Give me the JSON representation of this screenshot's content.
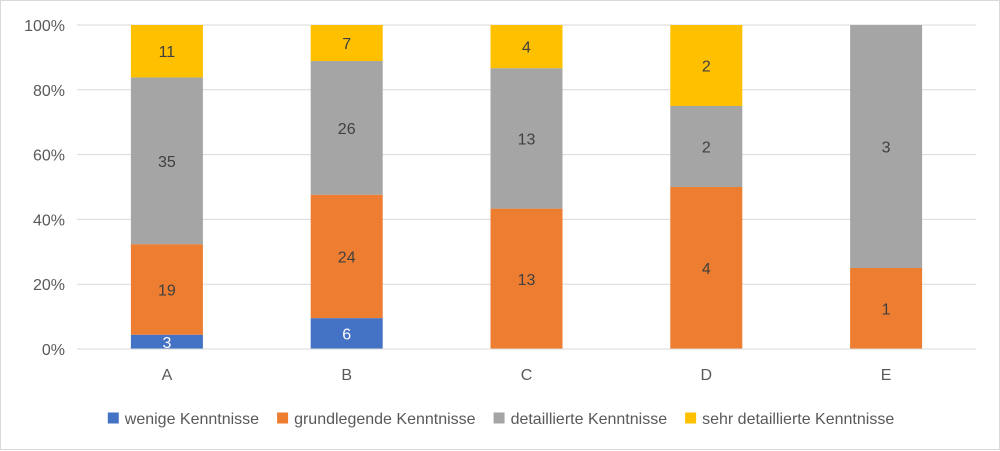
{
  "chart_data": {
    "type": "bar",
    "stacked": true,
    "normalized": true,
    "categories": [
      "A",
      "B",
      "C",
      "D",
      "E"
    ],
    "series": [
      {
        "name": "wenige Kenntnisse",
        "color": "#4472C4",
        "label_color": "#ffffff",
        "values": [
          3,
          6,
          0,
          0,
          0
        ]
      },
      {
        "name": "grundlegende Kenntnisse",
        "color": "#ED7D31",
        "label_color": "#404040",
        "values": [
          19,
          24,
          13,
          4,
          1
        ]
      },
      {
        "name": "detaillierte Kenntnisse",
        "color": "#A5A5A5",
        "label_color": "#404040",
        "values": [
          35,
          26,
          13,
          2,
          3
        ]
      },
      {
        "name": "sehr detaillierte Kenntnisse",
        "color": "#FFC000",
        "label_color": "#404040",
        "values": [
          11,
          7,
          4,
          2,
          0
        ]
      }
    ],
    "y_ticks": [
      "0%",
      "20%",
      "40%",
      "60%",
      "80%",
      "100%"
    ],
    "ylim": [
      0,
      1
    ],
    "grid": true,
    "legend_position": "bottom",
    "title": "",
    "xlabel": "",
    "ylabel": ""
  }
}
